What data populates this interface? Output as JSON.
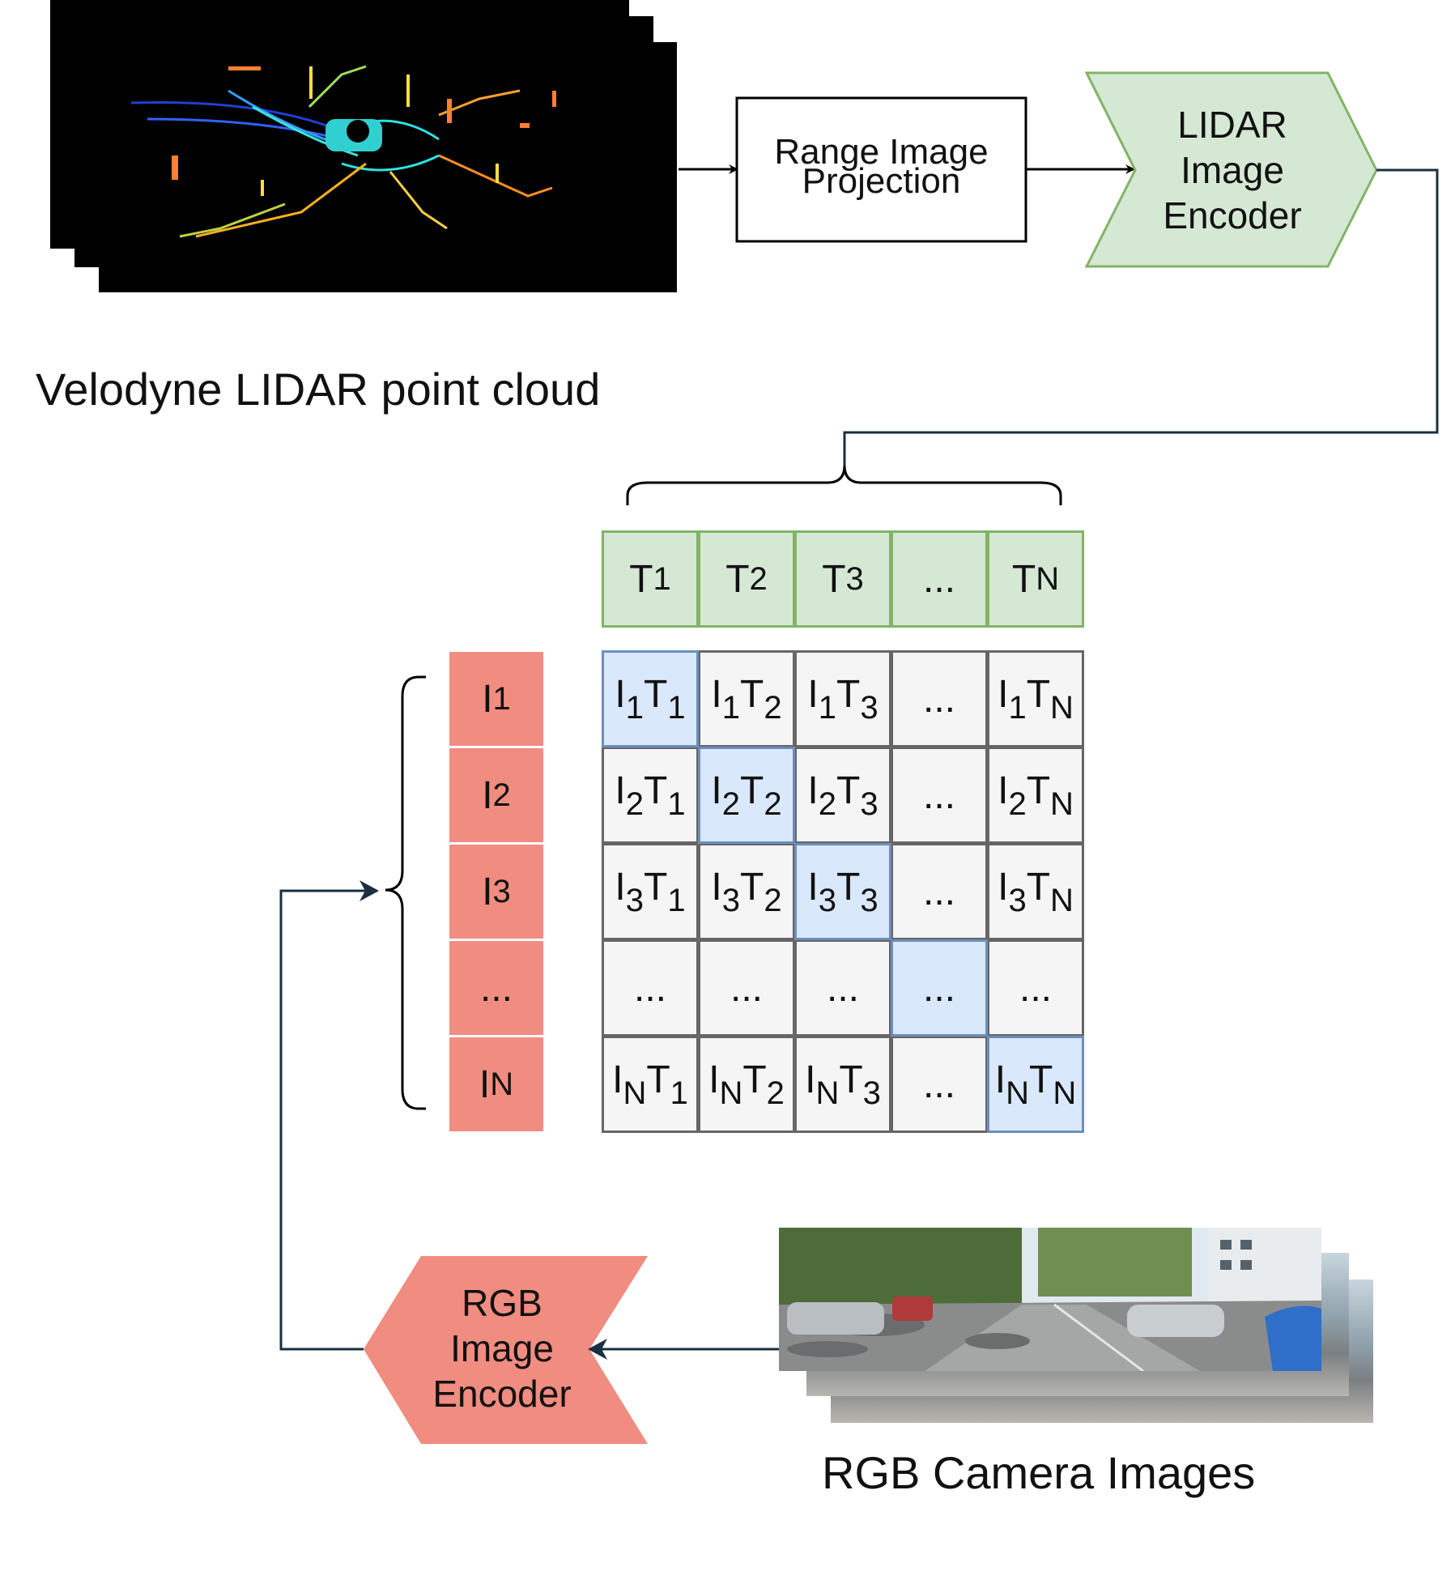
{
  "captions": {
    "lidar": "Velodyne LIDAR point cloud",
    "rgb": "RGB Camera Images"
  },
  "blocks": {
    "projection": [
      "Range Image",
      "Projection"
    ],
    "lidar_encoder": [
      "LIDAR",
      "Image",
      "Encoder"
    ],
    "rgb_encoder": [
      "RGB",
      "Image",
      "Encoder"
    ]
  },
  "text_tokens": [
    {
      "b": "T",
      "s": "1"
    },
    {
      "b": "T",
      "s": "2"
    },
    {
      "b": "T",
      "s": "3"
    },
    {
      "b": "...",
      "s": ""
    },
    {
      "b": "T",
      "s": "N"
    }
  ],
  "image_tokens": [
    {
      "b": "I",
      "s": "1"
    },
    {
      "b": "I",
      "s": "2"
    },
    {
      "b": "I",
      "s": "3"
    },
    {
      "b": "...",
      "s": ""
    },
    {
      "b": "I",
      "s": "N"
    }
  ],
  "matrix": [
    [
      "I1T1",
      "I1T2",
      "I1T3",
      "...",
      "I1TN"
    ],
    [
      "I2T1",
      "I2T2",
      "I2T3",
      "...",
      "I2TN"
    ],
    [
      "I3T1",
      "I3T2",
      "I3T3",
      "...",
      "I3TN"
    ],
    [
      "...",
      "...",
      "...",
      "...",
      "..."
    ],
    [
      "INT1",
      "INT2",
      "INT3",
      "...",
      "INTN"
    ]
  ],
  "colors": {
    "green_fill": "#d5e8d4",
    "green_stroke": "#82b366",
    "red_fill": "#f08c80",
    "grey_fill": "#f5f5f5",
    "grey_stroke": "#666666",
    "blue_fill": "#dae8fc",
    "blue_stroke": "#6c8ebf",
    "connector": "#1b2f3f"
  }
}
